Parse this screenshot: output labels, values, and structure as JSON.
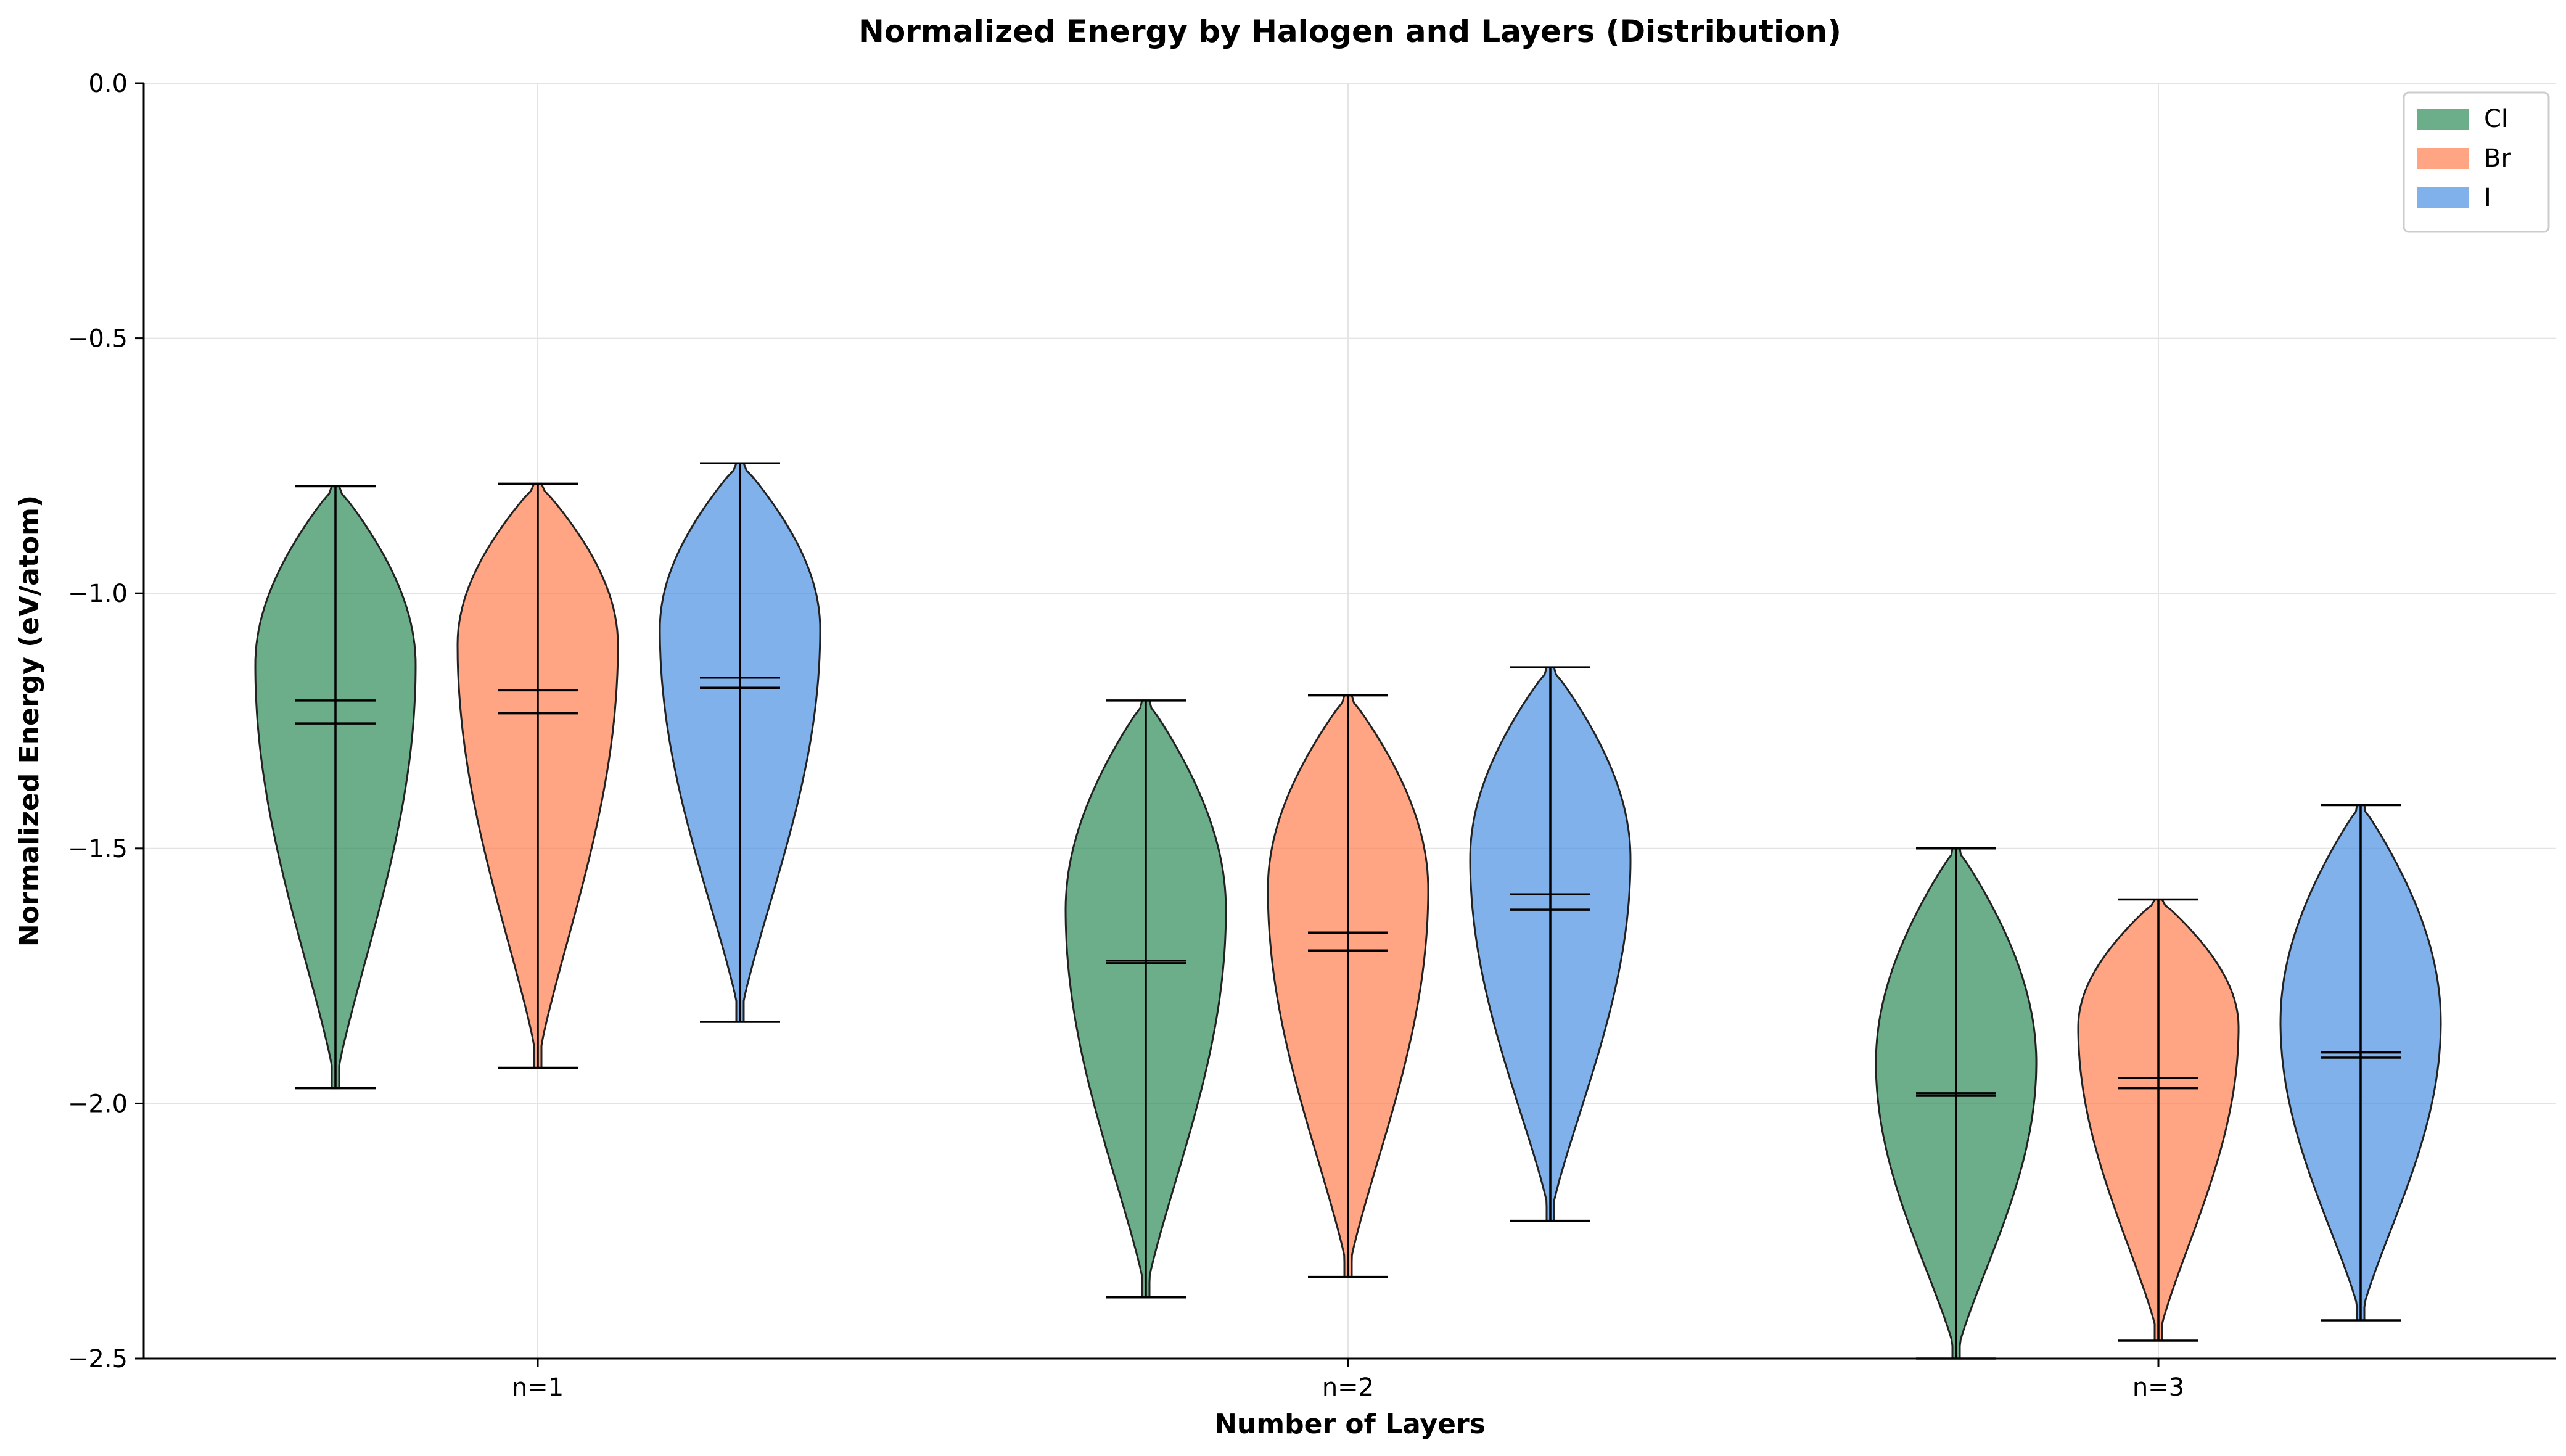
{
  "chart_data": {
    "type": "violin",
    "title": "Normalized Energy by Halogen and Layers (Distribution)",
    "xlabel": "Number of Layers",
    "ylabel": "Normalized Energy (eV/atom)",
    "categories": [
      "n=1",
      "n=2",
      "n=3"
    ],
    "ylim": [
      -2.5,
      0.0
    ],
    "yticks": [
      0.0,
      -0.5,
      -1.0,
      -1.5,
      -2.0,
      -2.5
    ],
    "ytick_labels": [
      "0.0",
      "−0.5",
      "−1.0",
      "−1.5",
      "−2.0",
      "−2.5"
    ],
    "grid": true,
    "legend_position": "top-right",
    "series": [
      {
        "name": "Cl",
        "color": "#2E8B57",
        "stats": [
          {
            "min": -1.97,
            "max": -0.79,
            "mean": -1.21,
            "median": -1.255,
            "peak": -1.14
          },
          {
            "min": -2.38,
            "max": -1.21,
            "mean": -1.72,
            "median": -1.725,
            "peak": -1.62
          },
          {
            "min": -2.5,
            "max": -1.5,
            "mean": -1.98,
            "median": -1.985,
            "peak": -1.92
          }
        ]
      },
      {
        "name": "Br",
        "color": "#FF7F50",
        "stats": [
          {
            "min": -1.93,
            "max": -0.785,
            "mean": -1.19,
            "median": -1.235,
            "peak": -1.1
          },
          {
            "min": -2.34,
            "max": -1.2,
            "mean": -1.665,
            "median": -1.7,
            "peak": -1.58
          },
          {
            "min": -2.465,
            "max": -1.6,
            "mean": -1.95,
            "median": -1.97,
            "peak": -1.85
          }
        ]
      },
      {
        "name": "I",
        "color": "#4A90E2",
        "stats": [
          {
            "min": -1.84,
            "max": -0.745,
            "mean": -1.165,
            "median": -1.185,
            "peak": -1.07
          },
          {
            "min": -2.23,
            "max": -1.145,
            "mean": -1.59,
            "median": -1.62,
            "peak": -1.52
          },
          {
            "min": -2.425,
            "max": -1.415,
            "mean": -1.9,
            "median": -1.91,
            "peak": -1.84
          }
        ]
      }
    ]
  }
}
